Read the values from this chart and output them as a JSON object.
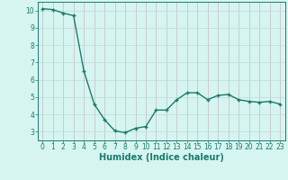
{
  "x": [
    0,
    1,
    2,
    3,
    4,
    5,
    6,
    7,
    8,
    9,
    10,
    11,
    12,
    13,
    14,
    15,
    16,
    17,
    18,
    19,
    20,
    21,
    22,
    23
  ],
  "y": [
    10.1,
    10.05,
    9.85,
    9.7,
    6.5,
    4.6,
    3.7,
    3.05,
    2.95,
    3.2,
    3.3,
    4.25,
    4.25,
    4.85,
    5.25,
    5.25,
    4.85,
    5.1,
    5.15,
    4.85,
    4.75,
    4.7,
    4.75,
    4.6
  ],
  "line_color": "#1a7a6e",
  "marker": "+",
  "marker_size": 3.5,
  "bg_color": "#d6f5f0",
  "grid_color_v": "#c8b8c0",
  "grid_color_h": "#b8ddd8",
  "xlabel": "Humidex (Indice chaleur)",
  "xlim": [
    -0.5,
    23.5
  ],
  "ylim": [
    2.5,
    10.5
  ],
  "yticks": [
    3,
    4,
    5,
    6,
    7,
    8,
    9,
    10
  ],
  "xticks": [
    0,
    1,
    2,
    3,
    4,
    5,
    6,
    7,
    8,
    9,
    10,
    11,
    12,
    13,
    14,
    15,
    16,
    17,
    18,
    19,
    20,
    21,
    22,
    23
  ],
  "tick_label_fontsize": 5.5,
  "xlabel_fontsize": 7.0,
  "line_width": 1.0,
  "marker_color": "#1a7a6e"
}
